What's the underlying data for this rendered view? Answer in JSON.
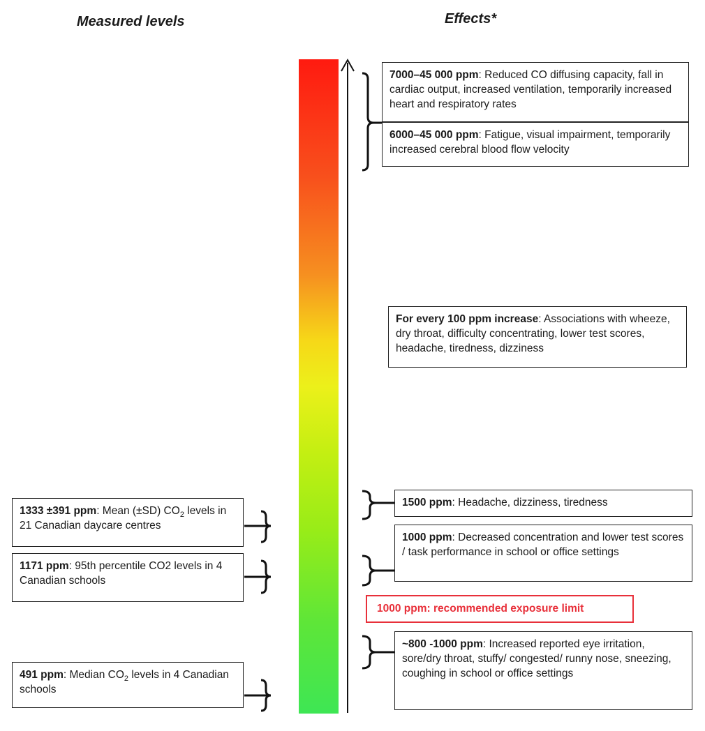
{
  "headings": {
    "measured": "Measured levels",
    "effects": "Effects*"
  },
  "effects": [
    {
      "bold": "7000–45 000 ppm",
      "text": ": Reduced CO diffusing capacity, fall in cardiac output, increased ventilation, temporarily increased heart and respiratory rates"
    },
    {
      "bold": "6000–45 000 ppm",
      "text": ": Fatigue, visual impairment, temporarily increased cerebral blood flow velocity"
    },
    {
      "bold": "For every 100 ppm increase",
      "text": ": Associations with wheeze, dry throat, difficulty concentrating, lower test scores, headache, tiredness, dizziness"
    },
    {
      "bold": "1500 ppm",
      "text": ": Headache, dizziness, tiredness"
    },
    {
      "bold": "1000 ppm",
      "text": ": Decreased concentration and lower test scores / task performance in school or office settings"
    },
    {
      "bold": "~800 -1000 ppm",
      "text": ": Increased reported eye irritation, sore/dry throat, stuffy/ congested/ runny nose, sneezing, coughing in school or office settings"
    }
  ],
  "limit": "1000 ppm: recommended exposure limit",
  "measured": [
    {
      "bold": "1333 ±391 ppm",
      "text1": ": Mean (±SD) CO",
      "sub": "2",
      "text2": " levels in 21 Canadian daycare centres"
    },
    {
      "bold": "1171 ppm",
      "text1": ": 95th percentile CO2 levels in 4 Canadian schools"
    },
    {
      "bold": "491 ppm",
      "text1": ": Median CO",
      "sub": "2",
      "text2": " levels in 4 Canadian schools"
    }
  ],
  "colors": {
    "gradient_top": "#ff1a10",
    "gradient_mid": "#ecf01a",
    "gradient_bottom": "#3ee654",
    "limit": "#e8303a"
  }
}
